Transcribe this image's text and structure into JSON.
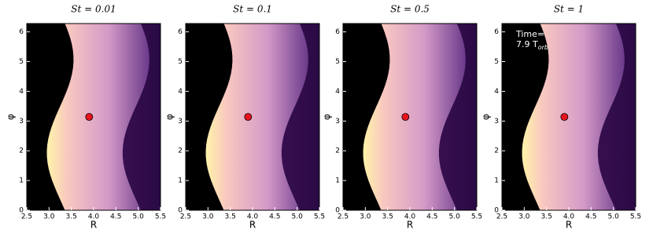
{
  "chart_data": [
    {
      "type": "scatter",
      "title": "St = 0.01",
      "xlabel": "R",
      "ylabel": "φ",
      "x": [
        3.9
      ],
      "values": [
        3.14
      ],
      "color": "#e8141c",
      "xlim": [
        2.5,
        5.5
      ],
      "ylim": [
        0,
        6.28
      ],
      "xticks": [
        2.5,
        {
          "value": 3,
          "label": "3.0"
        },
        3.5,
        {
          "value": 4,
          "label": "4.0"
        },
        4.5,
        {
          "value": 5,
          "label": "5.0"
        },
        5.5
      ],
      "yticks": [
        0,
        1,
        2,
        3,
        4,
        5,
        6
      ]
    },
    {
      "type": "scatter",
      "title": "St = 0.1",
      "xlabel": "R",
      "ylabel": "φ",
      "x": [
        3.9
      ],
      "values": [
        3.14
      ],
      "color": "#e8141c",
      "xlim": [
        2.5,
        5.5
      ],
      "ylim": [
        0,
        6.28
      ],
      "xticks": [
        2.5,
        {
          "value": 3,
          "label": "3.0"
        },
        3.5,
        {
          "value": 4,
          "label": "4.0"
        },
        4.5,
        {
          "value": 5,
          "label": "5.0"
        },
        5.5
      ],
      "yticks": [
        0,
        1,
        2,
        3,
        4,
        5,
        6
      ]
    },
    {
      "type": "scatter",
      "title": "St = 0.5",
      "xlabel": "R",
      "ylabel": "φ",
      "x": [
        3.9
      ],
      "values": [
        3.14
      ],
      "color": "#e8141c",
      "xlim": [
        2.5,
        5.5
      ],
      "ylim": [
        0,
        6.28
      ],
      "xticks": [
        2.5,
        {
          "value": 3,
          "label": "3.0"
        },
        3.5,
        {
          "value": 4,
          "label": "4.0"
        },
        4.5,
        {
          "value": 5,
          "label": "5.0"
        },
        5.5
      ],
      "yticks": [
        0,
        1,
        2,
        3,
        4,
        5,
        6
      ]
    },
    {
      "type": "scatter",
      "title": "St = 1",
      "xlabel": "R",
      "ylabel": "φ",
      "x": [
        3.9
      ],
      "values": [
        3.14
      ],
      "color": "#e8141c",
      "xlim": [
        2.5,
        5.5
      ],
      "ylim": [
        0,
        6.28
      ],
      "xticks": [
        2.5,
        {
          "value": 3,
          "label": "3.0"
        },
        3.5,
        {
          "value": 4,
          "label": "4.0"
        },
        4.5,
        {
          "value": 5,
          "label": "5.0"
        },
        5.5
      ],
      "yticks": [
        0,
        1,
        2,
        3,
        4,
        5,
        6
      ],
      "annotations": [
        {
          "text": "Time="
        },
        {
          "text": "7.9 T",
          "sub": "orb"
        }
      ]
    }
  ]
}
